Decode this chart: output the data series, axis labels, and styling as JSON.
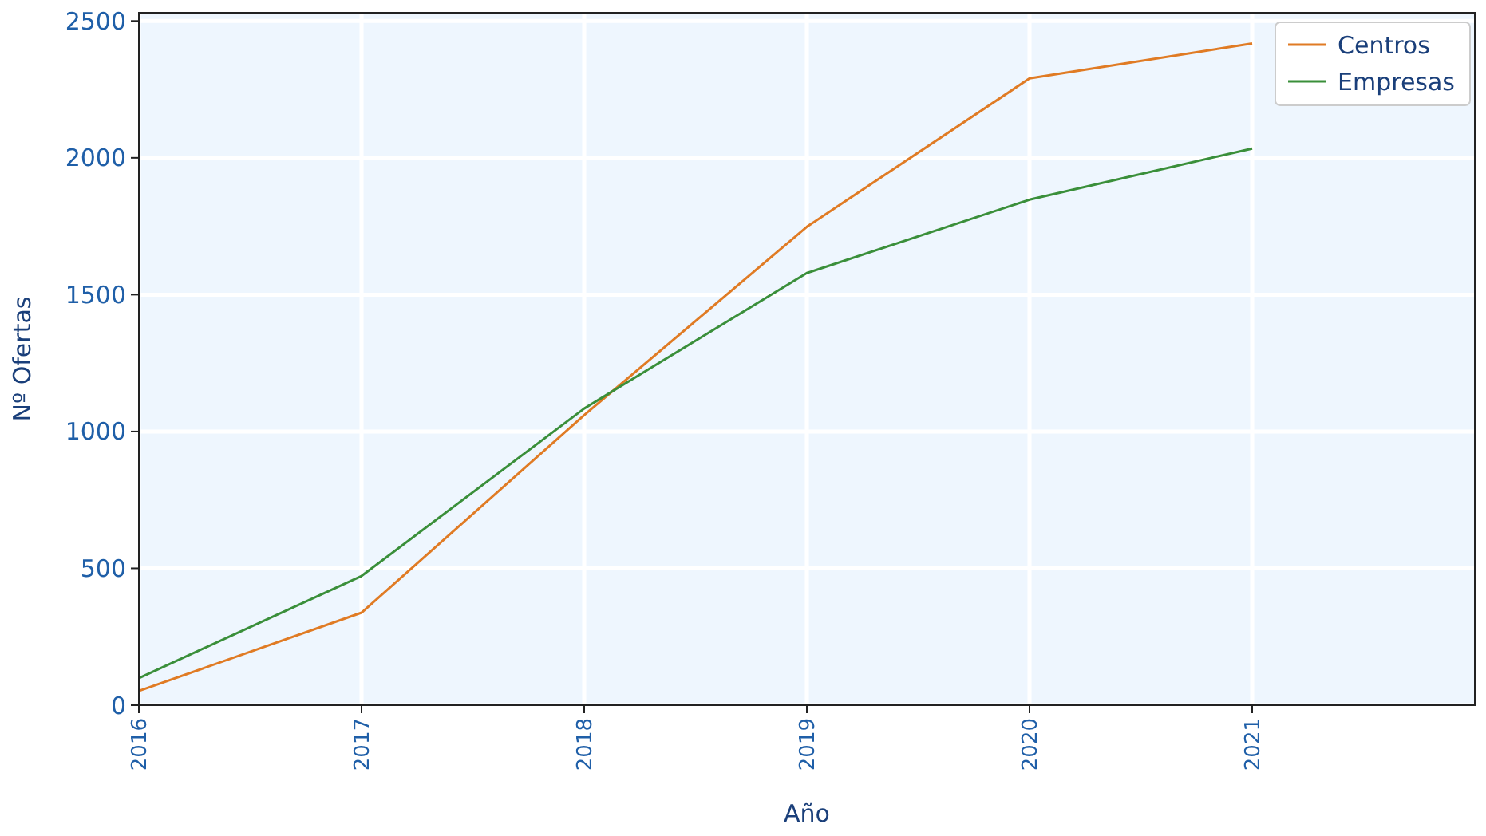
{
  "chart_data": {
    "type": "line",
    "xlabel": "Año",
    "ylabel": "Nº Ofertas",
    "x": [
      2016,
      2017,
      2018,
      2019,
      2020,
      2021
    ],
    "series": [
      {
        "name": "Centros",
        "color": "#e07b24",
        "values": [
          52,
          338,
          1060,
          1748,
          2290,
          2418
        ]
      },
      {
        "name": "Empresas",
        "color": "#3a8f3a",
        "values": [
          99,
          472,
          1084,
          1579,
          1847,
          2034
        ]
      }
    ],
    "xlim": [
      2016,
      2022
    ],
    "xticks": [
      2016,
      2017,
      2018,
      2019,
      2020,
      2021
    ],
    "ylim": [
      0,
      2530
    ],
    "yticks": [
      0,
      500,
      1000,
      1500,
      2000,
      2500
    ],
    "grid": true,
    "legend": "top right",
    "marker": "none",
    "line_style": "solid"
  }
}
